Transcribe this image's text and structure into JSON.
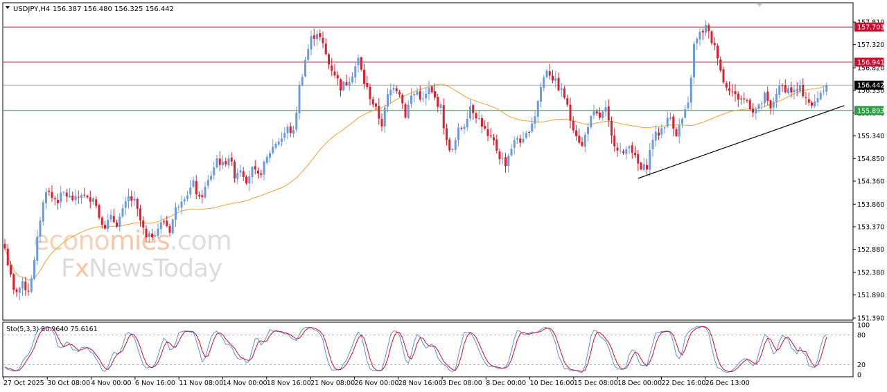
{
  "header": {
    "symbol": "USDJPY,H4",
    "ohlc": "156.387 156.480 156.325 156.442"
  },
  "watermark": {
    "line1_part1": "econo",
    "line1_part2": "mies",
    "line1_part3": ".com",
    "line2_part1": "F",
    "line2_part2": "x",
    "line2_part3": "NewsToday"
  },
  "colors": {
    "bull": "#6a9be0",
    "bear": "#e01e2e",
    "ma": "#f0a030",
    "stoch_main": "#5b8fdc",
    "stoch_signal": "#c8102e",
    "resistance": "#c8102e",
    "support": "#2ea043",
    "current": "#b0b0b0",
    "trendline": "#000000",
    "current_tag_bg": "#000000",
    "resistance_tag_bg": "#c8102e",
    "support_tag_bg": "#2ea043"
  },
  "chart_data": {
    "type": "candlestick",
    "symbol": "USDJPY",
    "timeframe": "H4",
    "ylim": [
      151.39,
      157.81
    ],
    "y_ticks": [
      "157.810",
      "157.320",
      "156.820",
      "156.330",
      "155.840",
      "155.340",
      "154.850",
      "154.360",
      "153.860",
      "153.370",
      "152.880",
      "152.380",
      "151.890",
      "151.390"
    ],
    "x_ticks": [
      "27 Oct 2025",
      "30 Oct 08:00",
      "4 Nov 00:00",
      "6 Nov 16:00",
      "11 Nov 08:00",
      "14 Nov 00:00",
      "18 Nov 16:00",
      "21 Nov 08:00",
      "26 Nov 00:00",
      "28 Nov 16:00",
      "3 Dec 08:00",
      "8 Dec 00:00",
      "10 Dec 16:00",
      "15 Dec 08:00",
      "18 Dec 00:00",
      "22 Dec 16:00",
      "26 Dec 13:00"
    ],
    "levels": [
      {
        "label": "157.703",
        "value": 157.703,
        "kind": "resistance"
      },
      {
        "label": "156.941",
        "value": 156.941,
        "kind": "resistance"
      },
      {
        "label": "156.442",
        "value": 156.442,
        "kind": "current"
      },
      {
        "label": "155.893",
        "value": 155.893,
        "kind": "support"
      }
    ],
    "trendline": {
      "start": {
        "bar": 215,
        "price": 154.42
      },
      "end": {
        "bar": 285,
        "price": 156.0
      }
    },
    "close_anchors": [
      [
        0,
        152.9
      ],
      [
        3,
        151.95
      ],
      [
        6,
        152.1
      ],
      [
        8,
        152.0
      ],
      [
        10,
        152.6
      ],
      [
        12,
        153.55
      ],
      [
        14,
        154.2
      ],
      [
        16,
        154.0
      ],
      [
        18,
        153.95
      ],
      [
        20,
        154.1
      ],
      [
        22,
        154.0
      ],
      [
        24,
        153.95
      ],
      [
        26,
        154.1
      ],
      [
        28,
        153.95
      ],
      [
        30,
        154.05
      ],
      [
        32,
        153.6
      ],
      [
        34,
        153.4
      ],
      [
        36,
        153.55
      ],
      [
        38,
        153.45
      ],
      [
        40,
        153.7
      ],
      [
        42,
        154.0
      ],
      [
        44,
        153.9
      ],
      [
        46,
        153.5
      ],
      [
        48,
        153.1
      ],
      [
        50,
        153.2
      ],
      [
        52,
        153.35
      ],
      [
        54,
        153.5
      ],
      [
        56,
        153.3
      ],
      [
        58,
        153.75
      ],
      [
        60,
        154.0
      ],
      [
        62,
        154.1
      ],
      [
        64,
        154.3
      ],
      [
        66,
        153.95
      ],
      [
        68,
        154.2
      ],
      [
        70,
        154.5
      ],
      [
        72,
        154.85
      ],
      [
        74,
        154.7
      ],
      [
        76,
        154.9
      ],
      [
        78,
        154.5
      ],
      [
        80,
        154.65
      ],
      [
        82,
        154.4
      ],
      [
        84,
        154.6
      ],
      [
        86,
        154.45
      ],
      [
        88,
        154.7
      ],
      [
        90,
        155.0
      ],
      [
        92,
        155.2
      ],
      [
        94,
        155.3
      ],
      [
        96,
        155.5
      ],
      [
        98,
        155.4
      ],
      [
        100,
        156.4
      ],
      [
        102,
        157.0
      ],
      [
        104,
        157.45
      ],
      [
        106,
        157.6
      ],
      [
        108,
        157.3
      ],
      [
        110,
        156.9
      ],
      [
        112,
        156.7
      ],
      [
        114,
        156.4
      ],
      [
        116,
        156.5
      ],
      [
        118,
        156.7
      ],
      [
        120,
        157.0
      ],
      [
        122,
        156.5
      ],
      [
        124,
        156.2
      ],
      [
        126,
        155.9
      ],
      [
        128,
        155.6
      ],
      [
        130,
        156.2
      ],
      [
        132,
        156.45
      ],
      [
        134,
        156.3
      ],
      [
        136,
        155.8
      ],
      [
        138,
        156.2
      ],
      [
        140,
        156.3
      ],
      [
        142,
        156.1
      ],
      [
        144,
        156.35
      ],
      [
        146,
        156.15
      ],
      [
        148,
        155.95
      ],
      [
        150,
        155.2
      ],
      [
        152,
        155.0
      ],
      [
        154,
        155.45
      ],
      [
        156,
        155.6
      ],
      [
        158,
        156.0
      ],
      [
        160,
        155.8
      ],
      [
        162,
        155.6
      ],
      [
        164,
        155.3
      ],
      [
        166,
        155.2
      ],
      [
        168,
        154.9
      ],
      [
        170,
        154.75
      ],
      [
        172,
        155.1
      ],
      [
        174,
        155.3
      ],
      [
        176,
        155.2
      ],
      [
        178,
        155.5
      ],
      [
        180,
        155.8
      ],
      [
        182,
        156.4
      ],
      [
        184,
        156.8
      ],
      [
        186,
        156.6
      ],
      [
        188,
        156.4
      ],
      [
        190,
        156.2
      ],
      [
        192,
        155.7
      ],
      [
        194,
        155.4
      ],
      [
        196,
        155.1
      ],
      [
        198,
        155.6
      ],
      [
        200,
        155.8
      ],
      [
        202,
        155.75
      ],
      [
        204,
        155.9
      ],
      [
        206,
        155.3
      ],
      [
        208,
        155.1
      ],
      [
        210,
        154.9
      ],
      [
        212,
        155.2
      ],
      [
        214,
        154.85
      ],
      [
        216,
        154.6
      ],
      [
        218,
        154.7
      ],
      [
        220,
        155.3
      ],
      [
        222,
        155.4
      ],
      [
        224,
        155.6
      ],
      [
        226,
        155.75
      ],
      [
        228,
        155.4
      ],
      [
        230,
        155.7
      ],
      [
        232,
        156.0
      ],
      [
        234,
        157.3
      ],
      [
        236,
        157.55
      ],
      [
        238,
        157.7
      ],
      [
        240,
        157.4
      ],
      [
        242,
        157.1
      ],
      [
        244,
        156.5
      ],
      [
        246,
        156.4
      ],
      [
        248,
        156.2
      ],
      [
        250,
        156.15
      ],
      [
        252,
        156.1
      ],
      [
        254,
        155.9
      ],
      [
        256,
        155.95
      ],
      [
        258,
        156.2
      ],
      [
        260,
        155.9
      ],
      [
        262,
        156.3
      ],
      [
        264,
        156.4
      ],
      [
        266,
        156.35
      ],
      [
        268,
        156.3
      ],
      [
        270,
        156.35
      ],
      [
        272,
        156.2
      ],
      [
        274,
        155.95
      ],
      [
        276,
        156.2
      ],
      [
        278,
        156.4
      ],
      [
        279,
        156.442
      ]
    ],
    "stochastic": {
      "label": "Sto(5,3,3) 80.9640 75.6161",
      "params": "5,3,3",
      "main": 80.964,
      "signal": 75.6161,
      "ylim": [
        0,
        100
      ],
      "levels": [
        80,
        20
      ],
      "axis_labels": [
        "100",
        "80",
        "20",
        "0"
      ]
    }
  }
}
